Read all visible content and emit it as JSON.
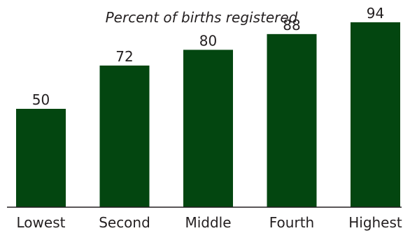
{
  "chart_data": {
    "type": "bar",
    "subtitle": "Percent of births registered",
    "categories": [
      "Lowest",
      "Second",
      "Middle",
      "Fourth",
      "Highest"
    ],
    "values": [
      50,
      72,
      80,
      88,
      94
    ],
    "ylim": [
      0,
      100
    ],
    "grid": false,
    "legend": "none",
    "bar_color": "#034610",
    "axis_color": "#231f20"
  }
}
